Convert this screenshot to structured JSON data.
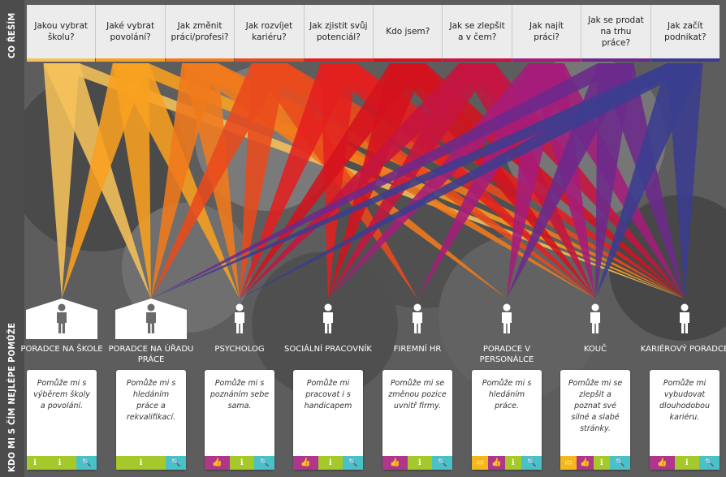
{
  "side_labels": {
    "top": "CO ŘEŠÍM",
    "bottom": "KDO MI S ČÍM NEJLÉPE POMŮŽE"
  },
  "questions": [
    {
      "label": "Jakou vybrat školu?",
      "color": "#f5c25a"
    },
    {
      "label": "Jaké vybrat povolání?",
      "color": "#f8a020"
    },
    {
      "label": "Jak změnit práci/profesi?",
      "color": "#f07a1c"
    },
    {
      "label": "Jak rozvíjet kariéru?",
      "color": "#e94a1d"
    },
    {
      "label": "Jak zjistit svůj potenciál?",
      "color": "#e3201f"
    },
    {
      "label": "Kdo jsem?",
      "color": "#d4121e"
    },
    {
      "label": "Jak se zlepšit a v čem?",
      "color": "#c51540"
    },
    {
      "label": "Jak najít práci?",
      "color": "#a51c7a"
    },
    {
      "label": "Jak se prodat na trhu práce?",
      "color": "#6b2a8c"
    },
    {
      "label": "Jak začít podnikat?",
      "color": "#3a3d8f"
    }
  ],
  "advisors": [
    {
      "name": "PORADCE NA ŠKOLE",
      "house": true,
      "text": "Pomůže mi s výběrem školy a povolání.",
      "tags": [
        "info",
        "info",
        "search"
      ]
    },
    {
      "name": "PORADCE NA ÚŘADU PRÁCE",
      "house": true,
      "text": "Pomůže mi s hledáním práce a rekvalifikací.",
      "tags": [
        "info",
        "search"
      ]
    },
    {
      "name": "PSYCHOLOG",
      "house": false,
      "text": "Pomůže mi s poznáním sebe sama.",
      "tags": [
        "like",
        "info",
        "search"
      ]
    },
    {
      "name": "SOCIÁLNÍ PRACOVNÍK",
      "house": false,
      "text": "Pomůže mi pracovat i s handicapem",
      "tags": [
        "like",
        "info",
        "search"
      ]
    },
    {
      "name": "FIREMNÍ HR",
      "house": false,
      "text": "Pomůže mi se změnou pozice uvnitř firmy.",
      "tags": [
        "like",
        "info",
        "search"
      ]
    },
    {
      "name": "PORADCE V PERSONÁLCE",
      "house": false,
      "text": "Pomůže mi s hledáním práce.",
      "tags": [
        "wallet",
        "like",
        "info",
        "search"
      ]
    },
    {
      "name": "KOUČ",
      "house": false,
      "text": "Pomůže mi se zlepšit a poznat své silné a slabé stránky.",
      "tags": [
        "wallet",
        "like",
        "info",
        "search"
      ]
    },
    {
      "name": "KARIÉROVÝ PORADCE",
      "house": false,
      "text": "Pomůže mi vybudovat dlouhodobou kariéru.",
      "tags": [
        "like",
        "info",
        "search"
      ]
    }
  ],
  "tag_colors": {
    "wallet": "#f4b81c",
    "like": "#b0368c",
    "info": "#a5c82a",
    "search": "#49c1c9"
  },
  "tag_icons": {
    "wallet": "▭",
    "like": "👍",
    "info": "ℹ",
    "search": "🔍"
  },
  "connections": [
    [
      0,
      0
    ],
    [
      0,
      1
    ],
    [
      0,
      7
    ],
    [
      1,
      0
    ],
    [
      1,
      1
    ],
    [
      1,
      2
    ],
    [
      1,
      7
    ],
    [
      2,
      1
    ],
    [
      2,
      2
    ],
    [
      2,
      5
    ],
    [
      2,
      6
    ],
    [
      2,
      7
    ],
    [
      3,
      1
    ],
    [
      3,
      2
    ],
    [
      3,
      4
    ],
    [
      3,
      6
    ],
    [
      3,
      7
    ],
    [
      4,
      2
    ],
    [
      4,
      3
    ],
    [
      4,
      6
    ],
    [
      4,
      7
    ],
    [
      5,
      2
    ],
    [
      5,
      3
    ],
    [
      5,
      6
    ],
    [
      5,
      7
    ],
    [
      6,
      2
    ],
    [
      6,
      3
    ],
    [
      6,
      6
    ],
    [
      6,
      7
    ],
    [
      7,
      3
    ],
    [
      7,
      4
    ],
    [
      7,
      5
    ],
    [
      7,
      6
    ],
    [
      7,
      7
    ],
    [
      8,
      1
    ],
    [
      8,
      5
    ],
    [
      8,
      6
    ],
    [
      8,
      7
    ],
    [
      9,
      1
    ],
    [
      9,
      2
    ],
    [
      9,
      6
    ],
    [
      9,
      7
    ]
  ]
}
